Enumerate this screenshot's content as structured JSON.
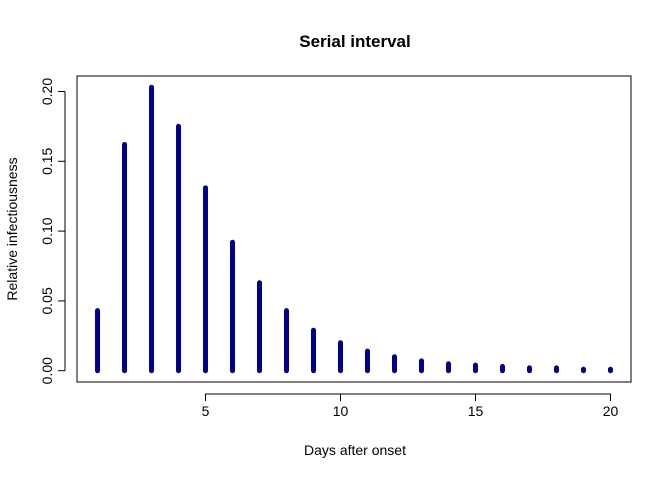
{
  "chart_data": {
    "type": "bar",
    "title": "Serial interval",
    "xlabel": "Days after onset",
    "ylabel": "Relative infectiousness",
    "x": [
      1,
      2,
      3,
      4,
      5,
      6,
      7,
      8,
      9,
      10,
      11,
      12,
      13,
      14,
      15,
      16,
      17,
      18,
      19,
      20
    ],
    "values": [
      0.043,
      0.162,
      0.203,
      0.175,
      0.131,
      0.092,
      0.063,
      0.043,
      0.029,
      0.02,
      0.014,
      0.01,
      0.007,
      0.005,
      0.004,
      0.003,
      0.002,
      0.002,
      0.001,
      0.001
    ],
    "xlim": [
      0.24,
      20.76
    ],
    "ylim": [
      -0.0081,
      0.2111
    ],
    "xticks": [
      5,
      10,
      15,
      20
    ],
    "xtick_labels": [
      "5",
      "10",
      "15",
      "20"
    ],
    "yticks": [
      0.0,
      0.05,
      0.1,
      0.15,
      0.2
    ],
    "ytick_labels": [
      "0.00",
      "0.05",
      "0.10",
      "0.15",
      "0.20"
    ],
    "bar_color": "#00008B",
    "grid": false,
    "legend": "none"
  }
}
